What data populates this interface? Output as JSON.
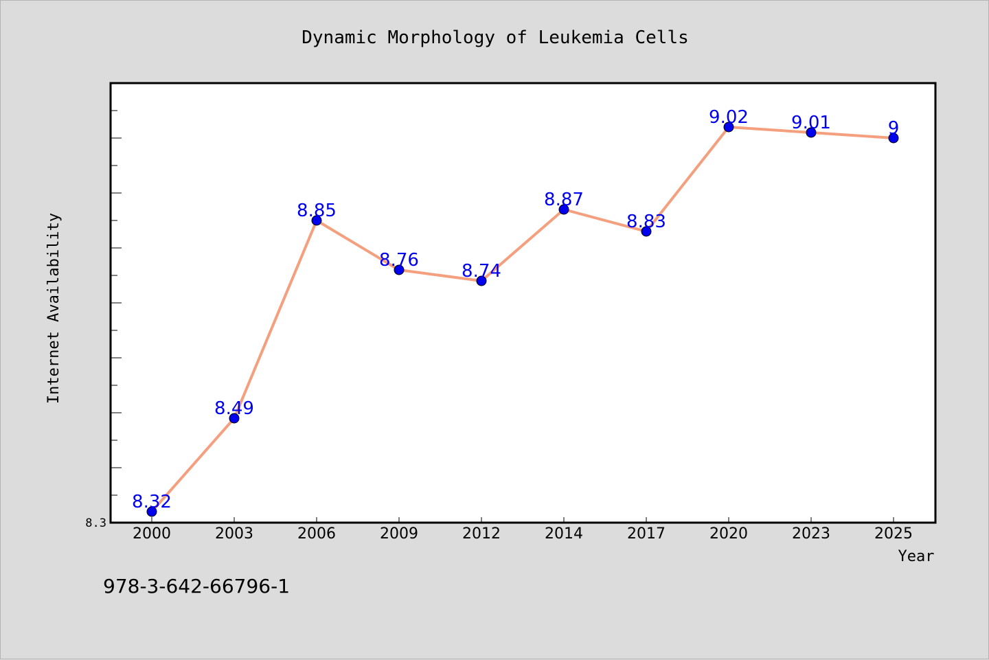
{
  "chart_data": {
    "type": "line",
    "title": "Dynamic Morphology of Leukemia Cells",
    "xlabel": "Year",
    "ylabel": "Internet Availability",
    "categories": [
      "2000",
      "2003",
      "2006",
      "2009",
      "2012",
      "2014",
      "2017",
      "2020",
      "2023",
      "2025"
    ],
    "series": [
      {
        "values": [
          8.32,
          8.49,
          8.85,
          8.76,
          8.74,
          8.87,
          8.83,
          9.02,
          9.01,
          9.0
        ],
        "labels": [
          "8.32",
          "8.49",
          "8.85",
          "8.76",
          "8.74",
          "8.87",
          "8.83",
          "9.02",
          "9.01",
          "9"
        ],
        "line_color": "#f4a07f",
        "marker_color": "#0000ee",
        "label_color": "#0000ee"
      }
    ],
    "ylim": [
      8.3,
      9.1
    ],
    "y_tick_labels": [
      "8.3"
    ],
    "grid": false,
    "legend": "none",
    "plot_background": "#ffffff",
    "figure_background": "#dcdcdc"
  },
  "footer": {
    "isbn": "978-3-642-66796-1"
  }
}
